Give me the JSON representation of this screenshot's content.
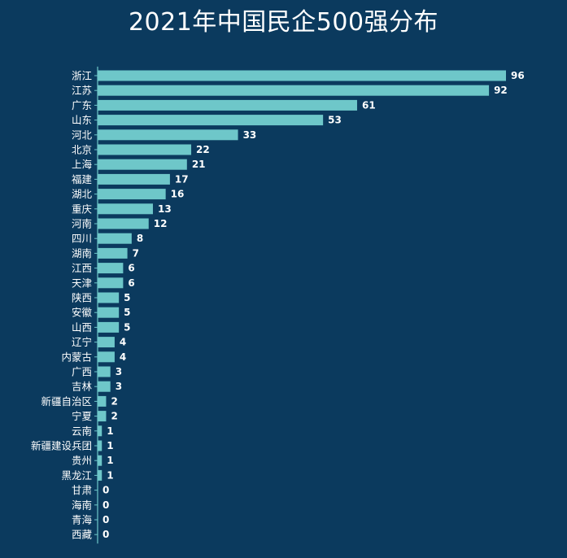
{
  "page": {
    "background": "#0b3a5e",
    "bar_color": "#6ec7c9",
    "text_color": "#ffffff"
  },
  "chart_data": {
    "type": "bar",
    "orientation": "horizontal",
    "title": "2021年中国民企500强分布",
    "xlabel": "",
    "ylabel": "",
    "xlim": [
      0,
      96
    ],
    "grid": false,
    "legend": "none",
    "categories": [
      "浙江",
      "江苏",
      "广东",
      "山东",
      "河北",
      "北京",
      "上海",
      "福建",
      "湖北",
      "重庆",
      "河南",
      "四川",
      "湖南",
      "江西",
      "天津",
      "陕西",
      "安徽",
      "山西",
      "辽宁",
      "内蒙古",
      "广西",
      "吉林",
      "新疆自治区",
      "宁夏",
      "云南",
      "新疆建设兵团",
      "贵州",
      "黑龙江",
      "甘肃",
      "海南",
      "青海",
      "西藏"
    ],
    "values": [
      96,
      92,
      61,
      53,
      33,
      22,
      21,
      17,
      16,
      13,
      12,
      8,
      7,
      6,
      6,
      5,
      5,
      5,
      4,
      4,
      3,
      3,
      2,
      2,
      1,
      1,
      1,
      1,
      0,
      0,
      0,
      0
    ]
  }
}
